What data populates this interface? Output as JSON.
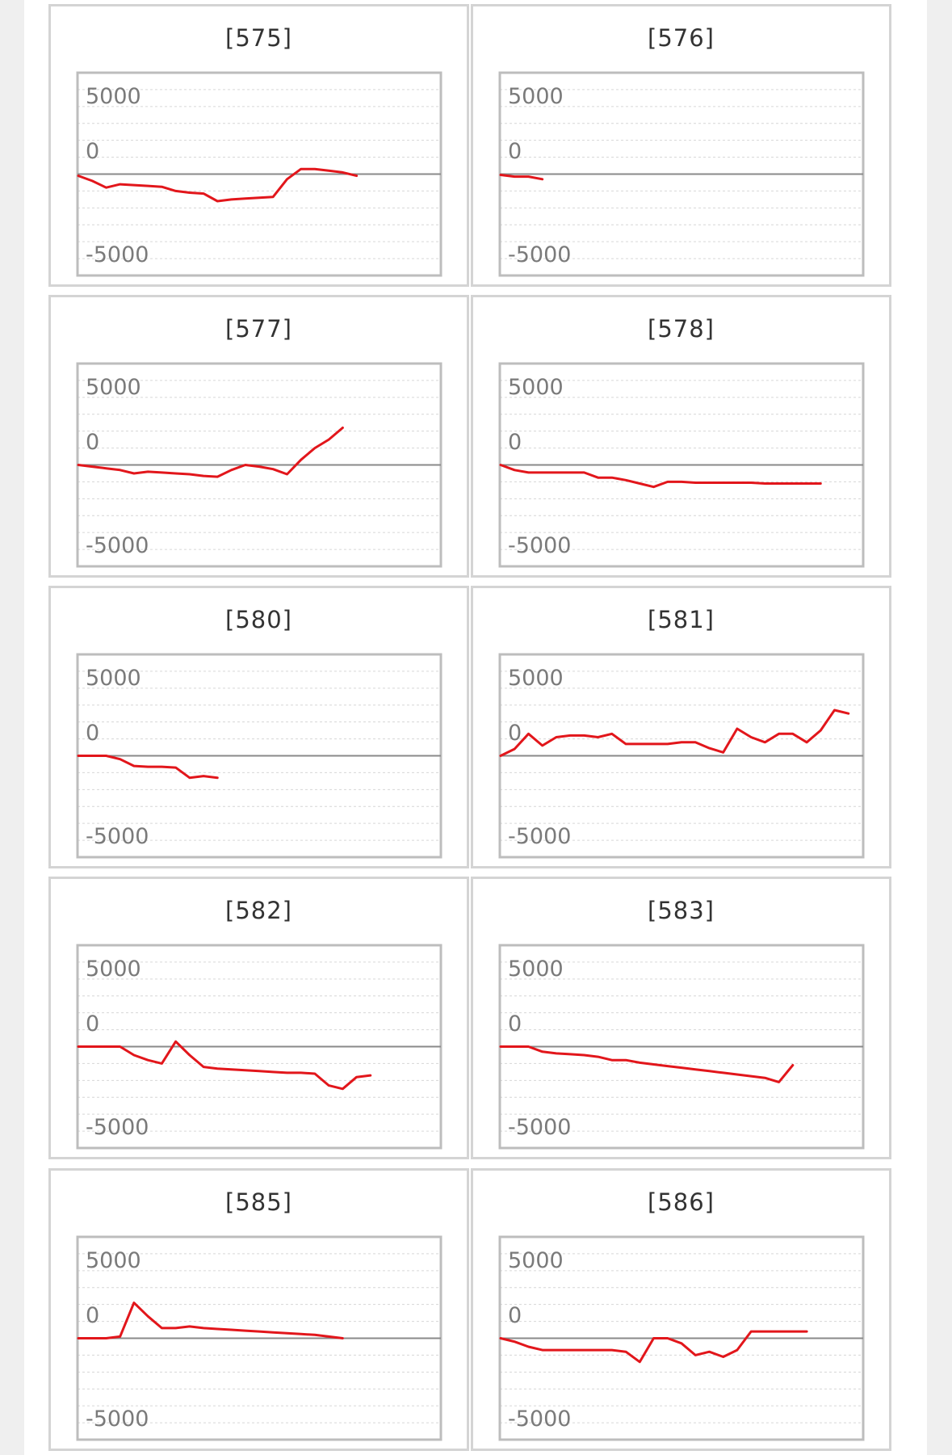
{
  "y_ticks": [
    5000,
    0,
    -5000
  ],
  "colors": {
    "line": "#e2161b",
    "zero": "#8a8a8a",
    "grid": "#d6d6d6",
    "frame": "#bdbdbd"
  },
  "chart_data": [
    {
      "type": "line",
      "title": "[575]",
      "ylim": [
        -6000,
        6000
      ],
      "x": [
        0,
        1,
        2,
        3,
        4,
        5,
        6,
        7,
        8,
        9,
        10,
        11,
        12,
        13,
        14,
        15,
        16,
        17,
        18,
        19,
        20
      ],
      "values": [
        -100,
        -400,
        -800,
        -600,
        -650,
        -700,
        -750,
        -1000,
        -1100,
        -1150,
        -1600,
        -1500,
        -1450,
        -1400,
        -1350,
        -300,
        300,
        300,
        200,
        100,
        -100
      ]
    },
    {
      "type": "line",
      "title": "[576]",
      "ylim": [
        -6000,
        6000
      ],
      "x": [
        0,
        1,
        2,
        3
      ],
      "values": [
        -50,
        -150,
        -150,
        -300
      ]
    },
    {
      "type": "line",
      "title": "[577]",
      "ylim": [
        -6000,
        6000
      ],
      "x": [
        0,
        1,
        2,
        3,
        4,
        5,
        6,
        7,
        8,
        9,
        10,
        11,
        12,
        13,
        14,
        15,
        16,
        17,
        18,
        19
      ],
      "values": [
        0,
        -100,
        -200,
        -300,
        -500,
        -400,
        -450,
        -500,
        -550,
        -650,
        -700,
        -300,
        0,
        -100,
        -250,
        -550,
        300,
        1000,
        1500,
        2200
      ]
    },
    {
      "type": "line",
      "title": "[578]",
      "ylim": [
        -6000,
        6000
      ],
      "x": [
        0,
        1,
        2,
        3,
        4,
        5,
        6,
        7,
        8,
        9,
        10,
        11,
        12,
        13,
        14,
        15,
        16,
        17,
        18,
        19,
        20,
        21,
        22,
        23
      ],
      "values": [
        0,
        -300,
        -450,
        -450,
        -450,
        -450,
        -450,
        -750,
        -750,
        -900,
        -1100,
        -1300,
        -1000,
        -1000,
        -1050,
        -1050,
        -1050,
        -1050,
        -1050,
        -1100,
        -1100,
        -1100,
        -1100,
        -1100
      ]
    },
    {
      "type": "line",
      "title": "[580]",
      "ylim": [
        -6000,
        6000
      ],
      "x": [
        0,
        1,
        2,
        3,
        4,
        5,
        6,
        7,
        8,
        9,
        10
      ],
      "values": [
        0,
        0,
        0,
        -200,
        -600,
        -650,
        -650,
        -700,
        -1300,
        -1200,
        -1300
      ]
    },
    {
      "type": "line",
      "title": "[581]",
      "ylim": [
        -6000,
        6000
      ],
      "x": [
        0,
        1,
        2,
        3,
        4,
        5,
        6,
        7,
        8,
        9,
        10,
        11,
        12,
        13,
        14,
        15,
        16,
        17,
        18,
        19,
        20,
        21,
        22,
        23,
        24,
        25
      ],
      "values": [
        0,
        400,
        1300,
        600,
        1100,
        1200,
        1200,
        1100,
        1300,
        700,
        700,
        700,
        700,
        800,
        800,
        450,
        200,
        1600,
        1100,
        800,
        1300,
        1300,
        800,
        1500,
        2700,
        2500
      ]
    },
    {
      "type": "line",
      "title": "[582]",
      "ylim": [
        -6000,
        6000
      ],
      "x": [
        0,
        1,
        2,
        3,
        4,
        5,
        6,
        7,
        8,
        9,
        10,
        11,
        12,
        13,
        14,
        15,
        16,
        17,
        18,
        19,
        20,
        21
      ],
      "values": [
        0,
        0,
        0,
        0,
        -500,
        -800,
        -1000,
        300,
        -500,
        -1200,
        -1300,
        -1350,
        -1400,
        -1450,
        -1500,
        -1550,
        -1550,
        -1600,
        -2300,
        -2500,
        -1800,
        -1700
      ]
    },
    {
      "type": "line",
      "title": "[583]",
      "ylim": [
        -6000,
        6000
      ],
      "x": [
        0,
        1,
        2,
        3,
        4,
        5,
        6,
        7,
        8,
        9,
        10,
        11,
        12,
        13,
        14,
        15,
        16,
        17,
        18,
        19,
        20,
        21
      ],
      "values": [
        0,
        0,
        0,
        -300,
        -400,
        -450,
        -500,
        -600,
        -800,
        -800,
        -950,
        -1050,
        -1150,
        -1250,
        -1350,
        -1450,
        -1550,
        -1650,
        -1750,
        -1850,
        -2100,
        -1100
      ]
    },
    {
      "type": "line",
      "title": "[585]",
      "ylim": [
        -6000,
        6000
      ],
      "x": [
        0,
        1,
        2,
        3,
        4,
        5,
        6,
        7,
        8,
        9,
        10,
        11,
        12,
        13,
        14,
        15,
        16,
        17,
        18,
        19
      ],
      "values": [
        0,
        0,
        0,
        100,
        2100,
        1300,
        600,
        600,
        700,
        600,
        550,
        500,
        450,
        400,
        350,
        300,
        250,
        200,
        100,
        0
      ]
    },
    {
      "type": "line",
      "title": "[586]",
      "ylim": [
        -6000,
        6000
      ],
      "x": [
        0,
        1,
        2,
        3,
        4,
        5,
        6,
        7,
        8,
        9,
        10,
        11,
        12,
        13,
        14,
        15,
        16,
        17,
        18,
        19,
        20,
        21,
        22
      ],
      "values": [
        0,
        -200,
        -500,
        -700,
        -700,
        -700,
        -700,
        -700,
        -700,
        -800,
        -1400,
        0,
        0,
        -300,
        -1000,
        -800,
        -1100,
        -700,
        400,
        400,
        400,
        400,
        400
      ]
    }
  ]
}
